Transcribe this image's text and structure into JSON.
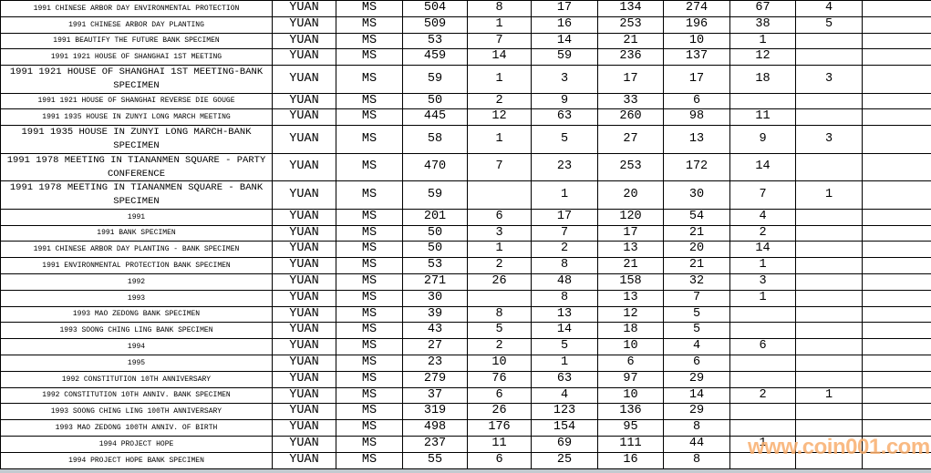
{
  "watermark": {
    "text": "www.coin001.com",
    "color": "#f8ae6e"
  },
  "colors": {
    "grid_border": "#000000",
    "table_background": "#ffffff",
    "text": "#000000",
    "bottom_strip": "#c3cad0"
  },
  "table": {
    "rows": [
      {
        "desc": "1991 CHINESE ARBOR DAY ENVIRONMENTAL PROTECTION",
        "unit": "YUAN",
        "grade": "MS",
        "tall": false,
        "values": [
          "504",
          "8",
          "17",
          "134",
          "274",
          "67",
          "4",
          ""
        ]
      },
      {
        "desc": "1991 CHINESE ARBOR DAY PLANTING",
        "unit": "YUAN",
        "grade": "MS",
        "tall": false,
        "values": [
          "509",
          "1",
          "16",
          "253",
          "196",
          "38",
          "5",
          ""
        ]
      },
      {
        "desc": "1991 BEAUTIFY THE FUTURE BANK SPECIMEN",
        "unit": "YUAN",
        "grade": "MS",
        "tall": false,
        "values": [
          "53",
          "7",
          "14",
          "21",
          "10",
          "1",
          "",
          ""
        ]
      },
      {
        "desc": "1991 1921 HOUSE OF SHANGHAI 1ST MEETING",
        "unit": "YUAN",
        "grade": "MS",
        "tall": false,
        "values": [
          "459",
          "14",
          "59",
          "236",
          "137",
          "12",
          "",
          ""
        ]
      },
      {
        "desc": "1991 1921 HOUSE OF SHANGHAI 1ST MEETING-BANK SPECIMEN",
        "unit": "YUAN",
        "grade": "MS",
        "tall": true,
        "values": [
          "59",
          "1",
          "3",
          "17",
          "17",
          "18",
          "3",
          ""
        ]
      },
      {
        "desc": "1991 1921 HOUSE OF SHANGHAI REVERSE DIE GOUGE",
        "unit": "YUAN",
        "grade": "MS",
        "tall": false,
        "values": [
          "50",
          "2",
          "9",
          "33",
          "6",
          "",
          "",
          ""
        ]
      },
      {
        "desc": "1991 1935 HOUSE IN ZUNYI LONG MARCH MEETING",
        "unit": "YUAN",
        "grade": "MS",
        "tall": false,
        "values": [
          "445",
          "12",
          "63",
          "260",
          "98",
          "11",
          "",
          ""
        ]
      },
      {
        "desc": "1991 1935 HOUSE IN ZUNYI LONG MARCH-BANK SPECIMEN",
        "unit": "YUAN",
        "grade": "MS",
        "tall": true,
        "values": [
          "58",
          "1",
          "5",
          "27",
          "13",
          "9",
          "3",
          ""
        ]
      },
      {
        "desc": "1991 1978 MEETING IN TIANANMEN SQUARE - PARTY CONFERENCE",
        "unit": "YUAN",
        "grade": "MS",
        "tall": true,
        "values": [
          "470",
          "7",
          "23",
          "253",
          "172",
          "14",
          "",
          ""
        ]
      },
      {
        "desc": "1991 1978 MEETING IN TIANANMEN SQUARE - BANK SPECIMEN",
        "unit": "YUAN",
        "grade": "MS",
        "tall": true,
        "values": [
          "59",
          "",
          "1",
          "20",
          "30",
          "7",
          "1",
          ""
        ]
      },
      {
        "desc": "1991",
        "unit": "YUAN",
        "grade": "MS",
        "tall": false,
        "values": [
          "201",
          "6",
          "17",
          "120",
          "54",
          "4",
          "",
          ""
        ]
      },
      {
        "desc": "1991 BANK SPECIMEN",
        "unit": "YUAN",
        "grade": "MS",
        "tall": false,
        "values": [
          "50",
          "3",
          "7",
          "17",
          "21",
          "2",
          "",
          ""
        ]
      },
      {
        "desc": "1991 CHINESE ARBOR DAY PLANTING - BANK SPECIMEN",
        "unit": "YUAN",
        "grade": "MS",
        "tall": false,
        "values": [
          "50",
          "1",
          "2",
          "13",
          "20",
          "14",
          "",
          ""
        ]
      },
      {
        "desc": "1991 ENVIRONMENTAL PROTECTION BANK SPECIMEN",
        "unit": "YUAN",
        "grade": "MS",
        "tall": false,
        "values": [
          "53",
          "2",
          "8",
          "21",
          "21",
          "1",
          "",
          ""
        ]
      },
      {
        "desc": "1992",
        "unit": "YUAN",
        "grade": "MS",
        "tall": false,
        "values": [
          "271",
          "26",
          "48",
          "158",
          "32",
          "3",
          "",
          ""
        ]
      },
      {
        "desc": "1993",
        "unit": "YUAN",
        "grade": "MS",
        "tall": false,
        "values": [
          "30",
          "",
          "8",
          "13",
          "7",
          "1",
          "",
          ""
        ]
      },
      {
        "desc": "1993 MAO ZEDONG BANK SPECIMEN",
        "unit": "YUAN",
        "grade": "MS",
        "tall": false,
        "values": [
          "39",
          "8",
          "13",
          "12",
          "5",
          "",
          "",
          ""
        ]
      },
      {
        "desc": "1993 SOONG CHING LING BANK SPECIMEN",
        "unit": "YUAN",
        "grade": "MS",
        "tall": false,
        "values": [
          "43",
          "5",
          "14",
          "18",
          "5",
          "",
          "",
          ""
        ]
      },
      {
        "desc": "1994",
        "unit": "YUAN",
        "grade": "MS",
        "tall": false,
        "values": [
          "27",
          "2",
          "5",
          "10",
          "4",
          "6",
          "",
          ""
        ]
      },
      {
        "desc": "1995",
        "unit": "YUAN",
        "grade": "MS",
        "tall": false,
        "values": [
          "23",
          "10",
          "1",
          "6",
          "6",
          "",
          "",
          ""
        ]
      },
      {
        "desc": "1992 CONSTITUTION 10TH ANNIVERSARY",
        "unit": "YUAN",
        "grade": "MS",
        "tall": false,
        "values": [
          "279",
          "76",
          "63",
          "97",
          "29",
          "",
          "",
          ""
        ]
      },
      {
        "desc": "1992 CONSTITUTION 10TH ANNIV. BANK SPECIMEN",
        "unit": "YUAN",
        "grade": "MS",
        "tall": false,
        "values": [
          "37",
          "6",
          "4",
          "10",
          "14",
          "2",
          "1",
          ""
        ]
      },
      {
        "desc": "1993 SOONG CHING LING 100TH ANNIVERSARY",
        "unit": "YUAN",
        "grade": "MS",
        "tall": false,
        "values": [
          "319",
          "26",
          "123",
          "136",
          "29",
          "",
          "",
          ""
        ]
      },
      {
        "desc": "1993 MAO ZEDONG 100TH ANNIV. OF BIRTH",
        "unit": "YUAN",
        "grade": "MS",
        "tall": false,
        "values": [
          "498",
          "176",
          "154",
          "95",
          "8",
          "",
          "",
          ""
        ]
      },
      {
        "desc": "1994 PROJECT HOPE",
        "unit": "YUAN",
        "grade": "MS",
        "tall": false,
        "values": [
          "237",
          "11",
          "69",
          "111",
          "44",
          "1",
          "",
          ""
        ]
      },
      {
        "desc": "1994 PROJECT HOPE BANK SPECIMEN",
        "unit": "YUAN",
        "grade": "MS",
        "tall": false,
        "values": [
          "55",
          "6",
          "25",
          "16",
          "8",
          "",
          "",
          ""
        ]
      }
    ]
  }
}
